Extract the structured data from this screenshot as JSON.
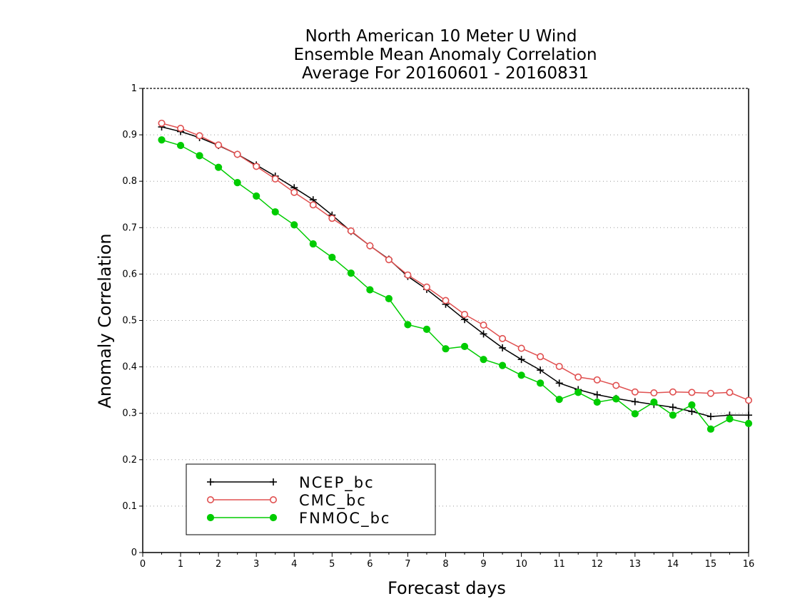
{
  "chart_data": {
    "type": "line",
    "title_lines": [
      "North American 10 Meter U Wind",
      "Ensemble Mean Anomaly Correlation",
      "Average For 20160601 - 20160831"
    ],
    "xlabel": "Forecast days",
    "ylabel": "Anomaly Correlation",
    "xlim": [
      0,
      16
    ],
    "ylim": [
      0,
      1
    ],
    "x_ticks": [
      0,
      1,
      2,
      3,
      4,
      5,
      6,
      7,
      8,
      9,
      10,
      11,
      12,
      13,
      14,
      15,
      16
    ],
    "y_ticks": [
      0,
      0.1,
      0.2,
      0.3,
      0.4,
      0.5,
      0.6,
      0.7,
      0.8,
      0.9,
      1
    ],
    "y_tick_labels": [
      "0",
      "0.1",
      "0.2",
      "0.3",
      "0.4",
      "0.5",
      "0.6",
      "0.7",
      "0.8",
      "0.9",
      "1"
    ],
    "grid": "horizontal-dotted",
    "legend_position": "bottom-left",
    "x": [
      0.5,
      1,
      1.5,
      2,
      2.5,
      3,
      3.5,
      4,
      4.5,
      5,
      5.5,
      6,
      6.5,
      7,
      7.5,
      8,
      8.5,
      9,
      9.5,
      10,
      10.5,
      11,
      11.5,
      12,
      12.5,
      13,
      13.5,
      14,
      14.5,
      15,
      15.5,
      16
    ],
    "series": [
      {
        "name": "NCEP_bc",
        "color": "#000000",
        "marker": "plus",
        "values": [
          0.917,
          0.907,
          0.894,
          0.877,
          0.858,
          0.835,
          0.811,
          0.786,
          0.76,
          0.727,
          0.692,
          0.661,
          0.632,
          0.595,
          0.567,
          0.535,
          0.502,
          0.471,
          0.441,
          0.416,
          0.393,
          0.365,
          0.351,
          0.34,
          0.332,
          0.325,
          0.319,
          0.313,
          0.304,
          0.293,
          0.296,
          0.296
        ]
      },
      {
        "name": "CMC_bc",
        "color": "#e05050",
        "marker": "open-circle",
        "values": [
          0.925,
          0.914,
          0.898,
          0.878,
          0.858,
          0.832,
          0.805,
          0.776,
          0.749,
          0.72,
          0.693,
          0.661,
          0.631,
          0.598,
          0.572,
          0.543,
          0.513,
          0.49,
          0.461,
          0.44,
          0.422,
          0.401,
          0.378,
          0.372,
          0.36,
          0.346,
          0.344,
          0.346,
          0.345,
          0.343,
          0.345,
          0.328
        ]
      },
      {
        "name": "FNMOC_bc",
        "color": "#00cc00",
        "marker": "filled-circle",
        "values": [
          0.889,
          0.877,
          0.855,
          0.83,
          0.797,
          0.768,
          0.734,
          0.706,
          0.665,
          0.636,
          0.602,
          0.566,
          0.547,
          0.491,
          0.481,
          0.439,
          0.444,
          0.416,
          0.403,
          0.382,
          0.365,
          0.33,
          0.345,
          0.324,
          0.331,
          0.299,
          0.324,
          0.296,
          0.318,
          0.266,
          0.288,
          0.278
        ]
      }
    ]
  }
}
